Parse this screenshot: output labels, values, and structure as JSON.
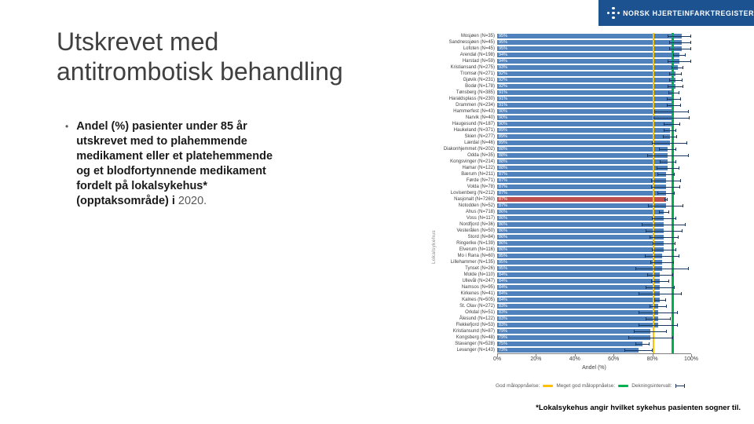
{
  "logo": {
    "text": "NORSK HJERTEINFARKTREGISTER",
    "bg_color": "#1c5290"
  },
  "title": {
    "line1": "Utskrevet med",
    "line2": "antitrombotisk behandling"
  },
  "bullet": {
    "marker": "•",
    "text": "Andel (%) pasienter under 85 år utskrevet med to plahemmende medikament eller et platehemmende og et blodfortynnende medikament fordelt på lokalsykehus* (opptaksområde) i ",
    "year": "2020."
  },
  "footnote": "*Lokalsykehus angir hvilket sykehus pasienten sogner til.",
  "chart_data": {
    "type": "bar",
    "orientation": "horizontal",
    "title": "",
    "xlabel": "Andel (%)",
    "ylabel": "Lokalsykehus",
    "xlim": [
      0,
      100
    ],
    "xticks": [
      "0%",
      "20%",
      "40%",
      "60%",
      "80%",
      "100%"
    ],
    "grid": false,
    "legend_position": "bottom",
    "colors": {
      "bar": "#4f81bd",
      "national_bar": "#c0504d",
      "threshold_good": "#ffc000",
      "threshold_very_good": "#00b050",
      "error_bar": "#17375e"
    },
    "thresholds": [
      {
        "name": "God måloppnåelse",
        "value": 80,
        "color": "#ffc000",
        "width": 2
      },
      {
        "name": "Meget god måloppnåelse",
        "value": 90,
        "color": "#00b050",
        "width": 3
      }
    ],
    "legend": [
      {
        "label": "God måloppnåelse:",
        "swatch": "line-yellow"
      },
      {
        "label": "Meget god måloppnåelse:",
        "swatch": "line-green"
      },
      {
        "label": "Dekningsintervall:",
        "swatch": "error-bar"
      }
    ],
    "bars": [
      {
        "label": "Mosjøen (N=35)",
        "value": 95,
        "n": 35
      },
      {
        "label": "Sandnessjøen (N=45)",
        "value": 95,
        "n": 45
      },
      {
        "label": "Lofoten (N=45)",
        "value": 95,
        "n": 45
      },
      {
        "label": "Arendal (N=198)",
        "value": 94,
        "n": 198
      },
      {
        "label": "Harstad (N=59)",
        "value": 94,
        "n": 59
      },
      {
        "label": "Kristiansand (N=275)",
        "value": 93,
        "n": 275
      },
      {
        "label": "Tromsø (N=271)",
        "value": 92,
        "n": 271
      },
      {
        "label": "Gjøvik (N=231)",
        "value": 92,
        "n": 231
      },
      {
        "label": "Bodø (N=178)",
        "value": 92,
        "n": 178
      },
      {
        "label": "Tønsberg (N=385)",
        "value": 91,
        "n": 385
      },
      {
        "label": "Haraldsplass (N=230)",
        "value": 91,
        "n": 230
      },
      {
        "label": "Drammen (N=234)",
        "value": 91,
        "n": 234
      },
      {
        "label": "Hammerfest (N=43)",
        "value": 90,
        "n": 43
      },
      {
        "label": "Narvik (N=40)",
        "value": 90,
        "n": 40
      },
      {
        "label": "Haugesund (N=187)",
        "value": 90,
        "n": 187
      },
      {
        "label": "Haukeland (N=371)",
        "value": 89,
        "n": 371
      },
      {
        "label": "Skien (N=277)",
        "value": 89,
        "n": 277
      },
      {
        "label": "Lærdal (N=46)",
        "value": 89,
        "n": 46
      },
      {
        "label": "Diakonhjemmet (N=202)",
        "value": 88,
        "n": 202
      },
      {
        "label": "Odda (N=35)",
        "value": 88,
        "n": 35
      },
      {
        "label": "Kongsvinger (N=214)",
        "value": 88,
        "n": 214
      },
      {
        "label": "Hamar (N=122)",
        "value": 88,
        "n": 122
      },
      {
        "label": "Bærum (N=211)",
        "value": 87,
        "n": 211
      },
      {
        "label": "Førde (N=71)",
        "value": 87,
        "n": 71
      },
      {
        "label": "Volda (N=78)",
        "value": 87,
        "n": 78
      },
      {
        "label": "Lovisenberg (N=212)",
        "value": 87,
        "n": 212
      },
      {
        "label": "Nasjonalt (N=7260)",
        "value": 87,
        "n": 7260,
        "national": true
      },
      {
        "label": "Notodden (N=52)",
        "value": 87,
        "n": 52
      },
      {
        "label": "Ahus (N=718)",
        "value": 86,
        "n": 718
      },
      {
        "label": "Voss (N=117)",
        "value": 86,
        "n": 117
      },
      {
        "label": "Nordfjord (N=36)",
        "value": 86,
        "n": 36
      },
      {
        "label": "Vesterålen (N=50)",
        "value": 86,
        "n": 50
      },
      {
        "label": "Stord (N=84)",
        "value": 86,
        "n": 84
      },
      {
        "label": "Ringerike (N=139)",
        "value": 86,
        "n": 139
      },
      {
        "label": "Elverum (N=116)",
        "value": 86,
        "n": 116
      },
      {
        "label": "Mo i Rana (N=60)",
        "value": 85,
        "n": 60
      },
      {
        "label": "Lillehammer (N=135)",
        "value": 85,
        "n": 135
      },
      {
        "label": "Tynset (N=26)",
        "value": 85,
        "n": 26
      },
      {
        "label": "Molde (N=110)",
        "value": 84,
        "n": 110
      },
      {
        "label": "Ullevål (N=247)",
        "value": 84,
        "n": 247
      },
      {
        "label": "Namsos (N=95)",
        "value": 84,
        "n": 95
      },
      {
        "label": "Kirkenes (N=41)",
        "value": 84,
        "n": 41
      },
      {
        "label": "Kalnes (N=505)",
        "value": 84,
        "n": 505
      },
      {
        "label": "St. Olav (N=272)",
        "value": 83,
        "n": 272
      },
      {
        "label": "Orkdal (N=51)",
        "value": 83,
        "n": 51
      },
      {
        "label": "Ålesund (N=122)",
        "value": 83,
        "n": 122
      },
      {
        "label": "Flekkefjord (N=53)",
        "value": 83,
        "n": 53
      },
      {
        "label": "Kristiansund (N=87)",
        "value": 79,
        "n": 87
      },
      {
        "label": "Kongsberg (N=48)",
        "value": 79,
        "n": 48
      },
      {
        "label": "Stavanger (N=528)",
        "value": 75,
        "n": 528
      },
      {
        "label": "Levanger (N=143)",
        "value": 73,
        "n": 143
      }
    ]
  }
}
